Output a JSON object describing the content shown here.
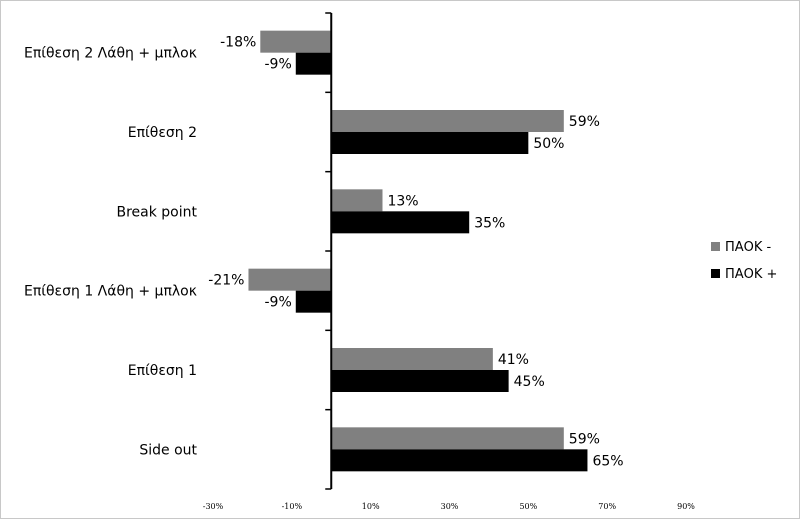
{
  "chart_data": {
    "type": "bar",
    "orientation": "horizontal",
    "categories": [
      "Επίθεση 2 Λάθη + μπλοκ",
      "Επίθεση 2",
      "Break point",
      "Επίθεση 1 Λάθη + μπλοκ",
      "Επίθεση 1",
      "Side out"
    ],
    "series": [
      {
        "name": "ΠΑΟΚ -",
        "color": "#808080",
        "values": [
          -18,
          59,
          13,
          -21,
          41,
          59
        ],
        "labels": [
          "-18%",
          "59%",
          "13%",
          "-21%",
          "41%",
          "59%"
        ]
      },
      {
        "name": "ΠΑΟΚ +",
        "color": "#000000",
        "values": [
          -9,
          50,
          35,
          -9,
          45,
          65
        ],
        "labels": [
          "-9%",
          "50%",
          "35%",
          "-9%",
          "45%",
          "65%"
        ]
      }
    ],
    "xlim": [
      -30,
      90
    ],
    "xticks": [
      -30,
      -10,
      10,
      30,
      50,
      70,
      90
    ],
    "xtick_labels": [
      "-30%",
      "-10%",
      "10%",
      "30%",
      "50%",
      "70%",
      "90%"
    ],
    "title": "",
    "xlabel": "",
    "ylabel": "",
    "legend_position": "right",
    "grid": false
  }
}
